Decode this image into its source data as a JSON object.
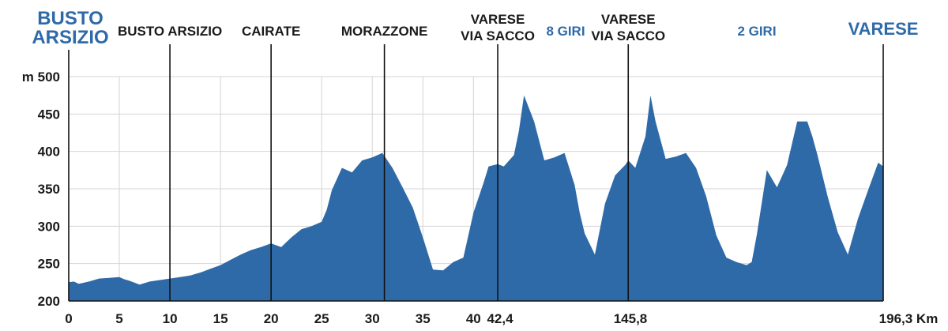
{
  "chart_data": {
    "type": "area",
    "title": "",
    "color": "#2f6aa8",
    "start_label": [
      "BUSTO",
      "ARSIZIO"
    ],
    "finish_label": "VARESE",
    "ylabel_prefix": "m",
    "ylim": [
      200,
      500
    ],
    "yticks": [
      200,
      250,
      300,
      350,
      400,
      450,
      500
    ],
    "xlim": [
      0,
      80.5
    ],
    "xticks": [
      0,
      5,
      10,
      15,
      20,
      25,
      30,
      35,
      40
    ],
    "km_markers": [
      "42,4",
      "145,8",
      "196,3 Km"
    ],
    "places": [
      {
        "lines": [
          "BUSTO ARSIZIO"
        ],
        "x": 10
      },
      {
        "lines": [
          "CAIRATE"
        ],
        "x": 20
      },
      {
        "lines": [
          "MORAZZONE"
        ],
        "x": 31.2
      },
      {
        "lines": [
          "VARESE",
          "VIA SACCO"
        ],
        "x": 42.4
      },
      {
        "lines": [
          "VARESE",
          "VIA SACCO"
        ],
        "x": 55.3
      },
      {
        "lines": [
          "VARESE"
        ],
        "x": 80.5
      }
    ],
    "laps": [
      "8 GIRI",
      "2 GIRI"
    ],
    "x": [
      0,
      0.5,
      1,
      2,
      3,
      4,
      5,
      5.5,
      6,
      7,
      8,
      9,
      10,
      11,
      12,
      13,
      14,
      15,
      16,
      17,
      18,
      19,
      20,
      21,
      22,
      23,
      24,
      25,
      25.5,
      26,
      27,
      28,
      29,
      30,
      31,
      32,
      33,
      34,
      35,
      36,
      37,
      38,
      39,
      40,
      41,
      41.5,
      42.4,
      43,
      44,
      44.5,
      45,
      46,
      47,
      48,
      49,
      50,
      50.5,
      51,
      52,
      53,
      54,
      55,
      55.3,
      56,
      57,
      57.5,
      58,
      59,
      60,
      61,
      62,
      63,
      64,
      65,
      66,
      67,
      67.5,
      68,
      69,
      70,
      71,
      72,
      73,
      73.5,
      74,
      75,
      76,
      77,
      78,
      79,
      80,
      80.5
    ],
    "y": [
      225,
      226,
      223,
      226,
      230,
      231,
      232,
      229,
      227,
      222,
      226,
      228,
      230,
      232,
      234,
      238,
      243,
      248,
      255,
      262,
      268,
      272,
      277,
      272,
      285,
      296,
      300,
      306,
      322,
      348,
      378,
      372,
      388,
      392,
      398,
      378,
      352,
      325,
      285,
      242,
      241,
      252,
      258,
      318,
      358,
      380,
      383,
      380,
      395,
      428,
      475,
      440,
      388,
      392,
      398,
      355,
      318,
      290,
      262,
      330,
      368,
      382,
      388,
      378,
      420,
      475,
      440,
      390,
      393,
      398,
      378,
      340,
      288,
      258,
      252,
      248,
      252,
      288,
      375,
      352,
      382,
      440,
      440,
      420,
      395,
      340,
      292,
      262,
      310,
      348,
      385,
      380
    ]
  }
}
